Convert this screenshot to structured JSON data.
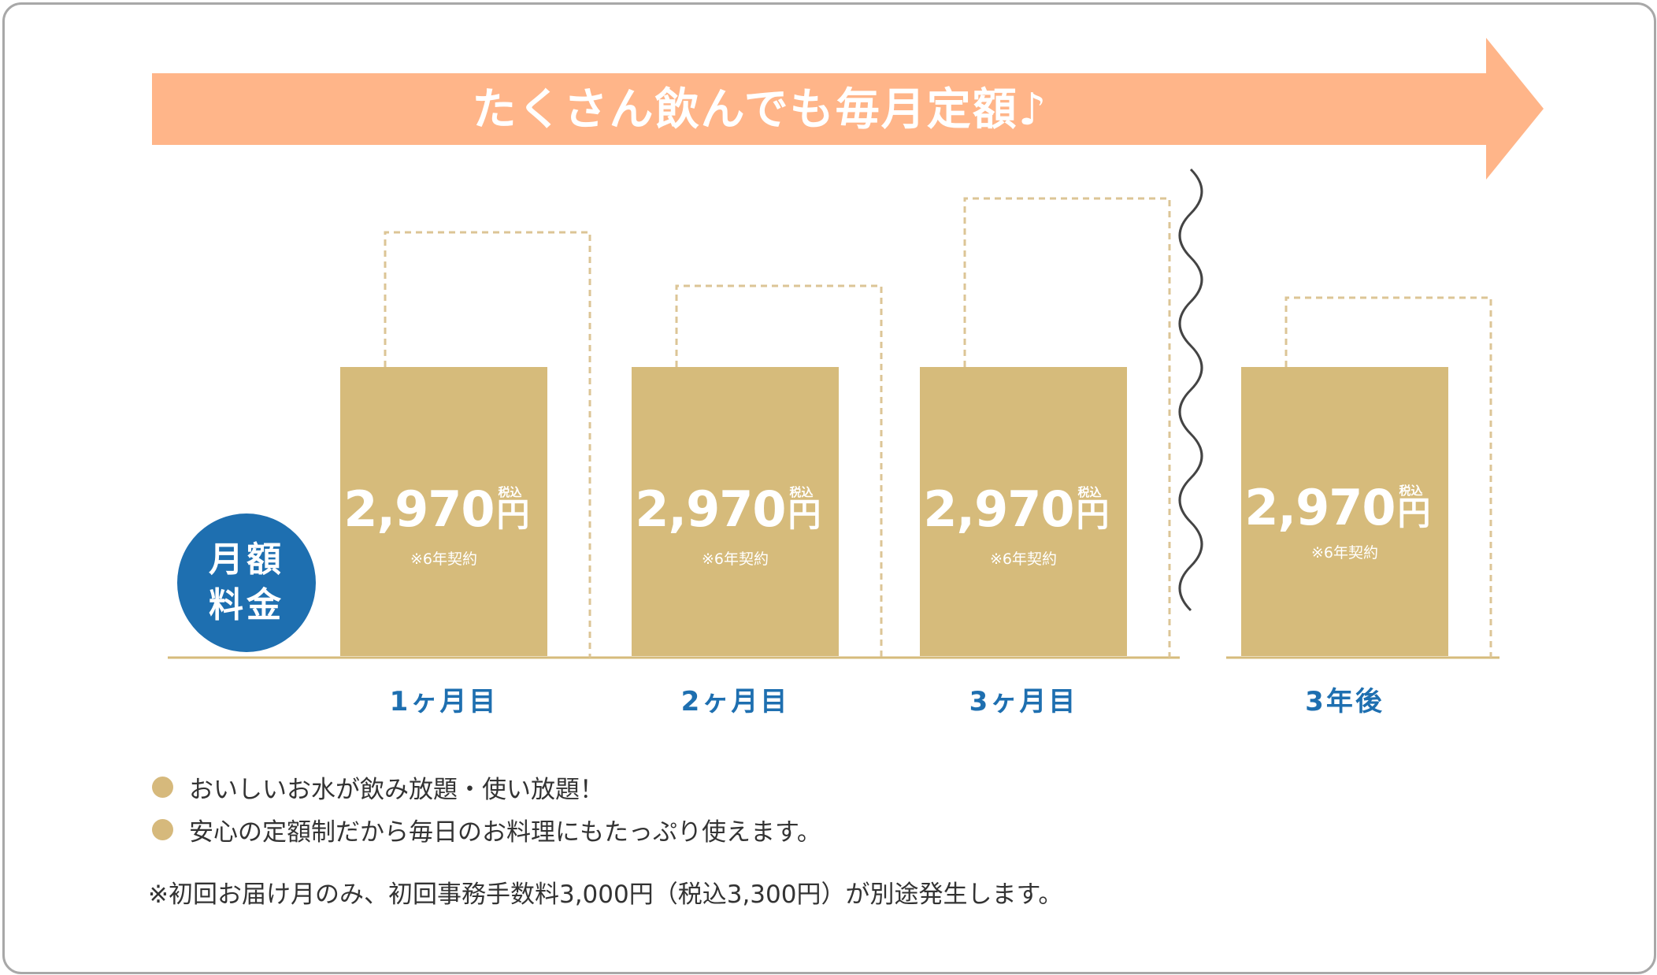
{
  "banner": {
    "text": "たくさん飲んでも毎月定額♪",
    "color": "#ffb589"
  },
  "colors": {
    "bar": "#d6bb7b",
    "dashed": "#dcc596",
    "baseline": "#d6bb7b",
    "period_label": "#1e6fb0",
    "circle": "#1e6fb0",
    "wave": "#444444"
  },
  "badge": {
    "line1": "月額",
    "line2": "料金"
  },
  "chart_data": {
    "type": "bar",
    "title": "たくさん飲んでも毎月定額♪",
    "categories": [
      "1ヶ月目",
      "2ヶ月目",
      "3ヶ月目",
      "3年後"
    ],
    "values": [
      2970,
      2970,
      2970,
      2970
    ],
    "value_labels": [
      "2,970",
      "2,970",
      "2,970",
      "2,970"
    ],
    "unit": "円",
    "tax_label": "税込",
    "contract_note": "※6年契約",
    "axis_break": "between 3ヶ月目 and 3年後"
  },
  "bullets": [
    "おいしいお水が飲み放題・使い放題！",
    "安心の定額制だから毎日のお料理にもたっぷり使えます。"
  ],
  "footnote": "※初回お届け月のみ、初回事務手数料3,000円（税込3,300円）が別途発生します。"
}
